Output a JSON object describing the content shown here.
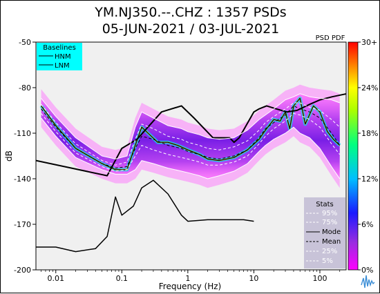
{
  "title_line1": "YM.NJ350.--.CHZ : 1357 PSDs",
  "title_line2": "05-JUN-2021 / 03-JUL-2021",
  "colorbar_label": "PSD PDF",
  "baselines_box": {
    "title": "Baselines",
    "items": [
      "HNM",
      "LNM"
    ]
  },
  "stats_box": {
    "title": "Stats",
    "items": [
      "95%",
      "75%",
      "Mode",
      "Mean",
      "25%",
      "5%"
    ]
  },
  "colors": {
    "background": "#f0f0f0",
    "baselines_bg": "#00ffff",
    "stats_bg": "#c8c3d8",
    "mode": "#000000",
    "percentile": "#ffffff"
  },
  "chart_data": {
    "type": "heatmap",
    "xlabel": "Frequency (Hz)",
    "ylabel": "dB",
    "x_scale": "log",
    "xlim": [
      0.005,
      250
    ],
    "ylim": [
      -200,
      -50
    ],
    "xticks": [
      0.01,
      0.1,
      1,
      10,
      100
    ],
    "xtick_labels": [
      "0.01",
      "0.1",
      "1",
      "10",
      "100"
    ],
    "yticks": [
      -50,
      -80,
      -110,
      -140,
      -170,
      -200
    ],
    "ytick_labels": [
      "-50",
      "-80",
      "-110",
      "-140",
      "-170",
      "-200"
    ],
    "colorbar": {
      "range_percent": [
        0,
        30
      ],
      "tick_labels": [
        "30+",
        "24%",
        "18%",
        "12%",
        "6%",
        "0%"
      ],
      "colors": [
        "#ff00ff",
        "#8a2be2",
        "#0000ff",
        "#00bfff",
        "#00ff80",
        "#80ff00",
        "#ffff00",
        "#ff8000",
        "#ff0000"
      ]
    },
    "series": [
      {
        "name": "HNM",
        "x": [
          0.005,
          0.06,
          0.1,
          0.17,
          0.4,
          0.8,
          1.24,
          2.4,
          4.3,
          5.0,
          6.0,
          10.0,
          12.0,
          15.6,
          21.9,
          31.6,
          45.0,
          70.0,
          101.0,
          154.0,
          328.0
        ],
        "y": [
          -128,
          -138,
          -120,
          -114,
          -96,
          -92,
          -100,
          -113,
          -113,
          -116,
          -113,
          -96,
          -94,
          -92,
          -94,
          -96,
          -95,
          -91,
          -88,
          -86,
          -83
        ]
      },
      {
        "name": "LNM",
        "x": [
          0.005,
          0.01,
          0.02,
          0.04,
          0.06,
          0.08,
          0.1,
          0.15,
          0.2,
          0.3,
          0.5,
          0.8,
          1.0,
          2.0,
          3.0,
          5.0,
          7.0,
          10.0
        ],
        "y": [
          -185,
          -185,
          -188,
          -186,
          -178,
          -152,
          -164,
          -158,
          -146,
          -141,
          -150,
          -164,
          -168,
          -167,
          -167,
          -167,
          -167,
          -168
        ]
      },
      {
        "name": "Mode",
        "x": [
          0.006,
          0.01,
          0.02,
          0.05,
          0.08,
          0.12,
          0.16,
          0.2,
          0.25,
          0.35,
          0.5,
          0.7,
          1.0,
          1.5,
          2.0,
          3.0,
          5.0,
          8.0,
          12.0,
          15.0,
          20.0,
          25.0,
          30.0,
          35.0,
          40.0,
          50.0,
          60.0,
          80.0,
          100.0,
          130.0,
          160.0,
          200.0
        ],
        "y": [
          -92,
          -105,
          -120,
          -130,
          -134,
          -134,
          -118,
          -106,
          -110,
          -116,
          -116,
          -118,
          -121,
          -124,
          -127,
          -128,
          -126,
          -121,
          -114,
          -108,
          -101,
          -102,
          -96,
          -107,
          -92,
          -87,
          -104,
          -92,
          -96,
          -109,
          -114,
          -118
        ]
      },
      {
        "name": "Mean",
        "x": [
          0.006,
          0.01,
          0.02,
          0.05,
          0.08,
          0.12,
          0.16,
          0.2,
          0.3,
          0.5,
          0.8,
          1.0,
          1.5,
          2.0,
          3.0,
          5.0,
          8.0,
          12.0,
          15.0,
          20.0,
          30.0,
          40.0,
          50.0,
          70.0,
          100.0,
          150.0,
          200.0
        ],
        "y": [
          -94,
          -106,
          -120,
          -130,
          -133,
          -132,
          -120,
          -112,
          -114,
          -118,
          -120,
          -122,
          -124,
          -126,
          -127,
          -125,
          -121,
          -113,
          -107,
          -103,
          -98,
          -92,
          -94,
          -96,
          -100,
          -110,
          -118
        ]
      },
      {
        "name": "95%",
        "x": [
          0.006,
          0.01,
          0.02,
          0.05,
          0.08,
          0.12,
          0.16,
          0.2,
          0.3,
          0.5,
          0.8,
          1.0,
          1.5,
          2.0,
          3.0,
          5.0,
          8.0,
          12.0,
          15.0,
          20.0,
          30.0,
          40.0,
          50.0,
          70.0,
          100.0,
          150.0,
          200.0
        ],
        "y": [
          -87,
          -99,
          -113,
          -125,
          -127,
          -125,
          -106,
          -96,
          -100,
          -105,
          -107,
          -109,
          -111,
          -113,
          -114,
          -113,
          -108,
          -101,
          -98,
          -94,
          -88,
          -86,
          -84,
          -86,
          -87,
          -88,
          -90
        ]
      },
      {
        "name": "75%",
        "x": [
          0.006,
          0.01,
          0.02,
          0.05,
          0.08,
          0.12,
          0.16,
          0.2,
          0.3,
          0.5,
          0.8,
          1.0,
          1.5,
          2.0,
          3.0,
          5.0,
          8.0,
          12.0,
          15.0,
          20.0,
          30.0,
          40.0,
          50.0,
          70.0,
          100.0,
          150.0,
          200.0
        ],
        "y": [
          -91,
          -103,
          -117,
          -128,
          -131,
          -129,
          -114,
          -104,
          -107,
          -112,
          -114,
          -116,
          -118,
          -120,
          -121,
          -119,
          -115,
          -108,
          -103,
          -99,
          -94,
          -90,
          -90,
          -93,
          -95,
          -101,
          -106
        ]
      },
      {
        "name": "25%",
        "x": [
          0.006,
          0.01,
          0.02,
          0.05,
          0.08,
          0.12,
          0.16,
          0.2,
          0.3,
          0.5,
          0.8,
          1.0,
          1.5,
          2.0,
          3.0,
          5.0,
          8.0,
          12.0,
          15.0,
          20.0,
          30.0,
          40.0,
          50.0,
          70.0,
          100.0,
          150.0,
          200.0
        ],
        "y": [
          -97,
          -109,
          -123,
          -132,
          -135,
          -134,
          -125,
          -118,
          -121,
          -124,
          -126,
          -127,
          -129,
          -131,
          -131,
          -129,
          -125,
          -117,
          -112,
          -107,
          -102,
          -97,
          -98,
          -101,
          -106,
          -117,
          -124
        ]
      },
      {
        "name": "5%",
        "x": [
          0.006,
          0.01,
          0.02,
          0.05,
          0.08,
          0.12,
          0.16,
          0.2,
          0.3,
          0.5,
          0.8,
          1.0,
          1.5,
          2.0,
          3.0,
          5.0,
          8.0,
          12.0,
          15.0,
          20.0,
          30.0,
          40.0,
          50.0,
          70.0,
          100.0,
          150.0,
          200.0
        ],
        "y": [
          -100,
          -112,
          -126,
          -134,
          -137,
          -137,
          -134,
          -128,
          -130,
          -133,
          -135,
          -136,
          -138,
          -140,
          -138,
          -135,
          -130,
          -122,
          -118,
          -114,
          -110,
          -106,
          -110,
          -113,
          -120,
          -132,
          -140
        ]
      }
    ]
  }
}
